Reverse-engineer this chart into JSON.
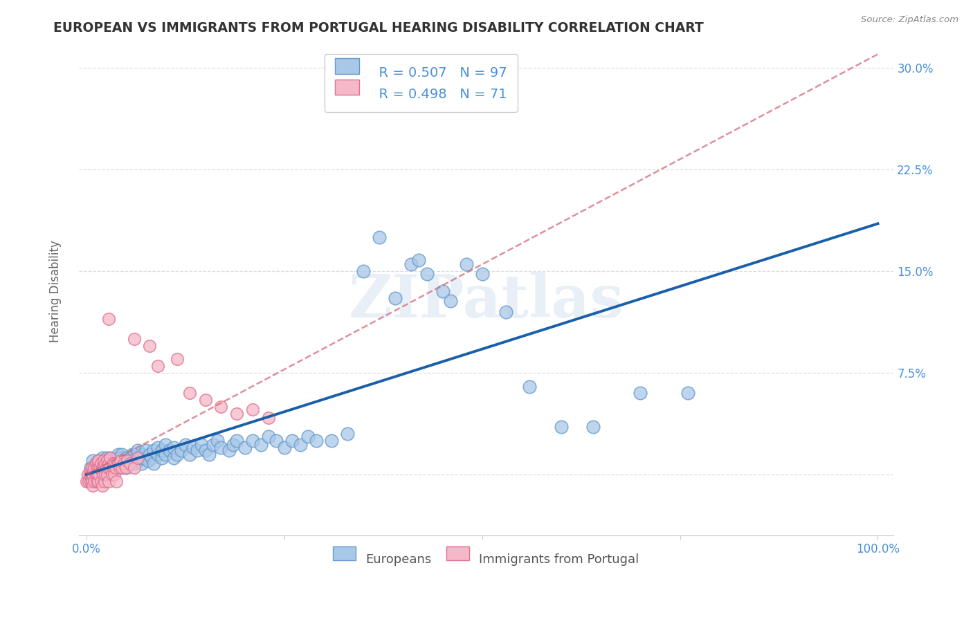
{
  "title": "EUROPEAN VS IMMIGRANTS FROM PORTUGAL HEARING DISABILITY CORRELATION CHART",
  "source": "Source: ZipAtlas.com",
  "ylabel": "Hearing Disability",
  "xlim": [
    -0.01,
    1.02
  ],
  "ylim": [
    -0.045,
    0.315
  ],
  "watermark": "ZIPatlas",
  "legend_r1": "R = 0.507",
  "legend_n1": "N = 97",
  "legend_r2": "R = 0.498",
  "legend_n2": "N = 71",
  "blue_color": "#a8c8e8",
  "blue_edge": "#6699cc",
  "pink_color": "#f5b8c8",
  "pink_edge": "#e07090",
  "trendline_blue": "#1a5faa",
  "trendline_pink": "#d06070",
  "blue_scatter": [
    [
      0.005,
      0.005
    ],
    [
      0.008,
      0.01
    ],
    [
      0.01,
      0.005
    ],
    [
      0.012,
      0.008
    ],
    [
      0.015,
      0.003
    ],
    [
      0.015,
      0.01
    ],
    [
      0.018,
      0.008
    ],
    [
      0.02,
      0.005
    ],
    [
      0.02,
      0.012
    ],
    [
      0.022,
      0.008
    ],
    [
      0.025,
      0.005
    ],
    [
      0.025,
      0.012
    ],
    [
      0.028,
      0.01
    ],
    [
      0.03,
      0.005
    ],
    [
      0.03,
      0.012
    ],
    [
      0.032,
      0.008
    ],
    [
      0.035,
      0.01
    ],
    [
      0.038,
      0.005
    ],
    [
      0.038,
      0.012
    ],
    [
      0.04,
      0.008
    ],
    [
      0.04,
      0.015
    ],
    [
      0.042,
      0.012
    ],
    [
      0.045,
      0.008
    ],
    [
      0.045,
      0.015
    ],
    [
      0.048,
      0.01
    ],
    [
      0.05,
      0.005
    ],
    [
      0.05,
      0.012
    ],
    [
      0.052,
      0.008
    ],
    [
      0.055,
      0.012
    ],
    [
      0.058,
      0.015
    ],
    [
      0.06,
      0.008
    ],
    [
      0.06,
      0.015
    ],
    [
      0.062,
      0.012
    ],
    [
      0.065,
      0.01
    ],
    [
      0.065,
      0.018
    ],
    [
      0.068,
      0.012
    ],
    [
      0.07,
      0.008
    ],
    [
      0.07,
      0.015
    ],
    [
      0.072,
      0.012
    ],
    [
      0.075,
      0.018
    ],
    [
      0.078,
      0.01
    ],
    [
      0.08,
      0.015
    ],
    [
      0.082,
      0.012
    ],
    [
      0.085,
      0.008
    ],
    [
      0.085,
      0.018
    ],
    [
      0.09,
      0.015
    ],
    [
      0.09,
      0.02
    ],
    [
      0.095,
      0.012
    ],
    [
      0.095,
      0.018
    ],
    [
      0.1,
      0.015
    ],
    [
      0.1,
      0.022
    ],
    [
      0.105,
      0.018
    ],
    [
      0.11,
      0.012
    ],
    [
      0.11,
      0.02
    ],
    [
      0.115,
      0.015
    ],
    [
      0.12,
      0.018
    ],
    [
      0.125,
      0.022
    ],
    [
      0.13,
      0.015
    ],
    [
      0.135,
      0.02
    ],
    [
      0.14,
      0.018
    ],
    [
      0.145,
      0.022
    ],
    [
      0.15,
      0.018
    ],
    [
      0.155,
      0.015
    ],
    [
      0.16,
      0.022
    ],
    [
      0.165,
      0.025
    ],
    [
      0.17,
      0.02
    ],
    [
      0.18,
      0.018
    ],
    [
      0.185,
      0.022
    ],
    [
      0.19,
      0.025
    ],
    [
      0.2,
      0.02
    ],
    [
      0.21,
      0.025
    ],
    [
      0.22,
      0.022
    ],
    [
      0.23,
      0.028
    ],
    [
      0.24,
      0.025
    ],
    [
      0.25,
      0.02
    ],
    [
      0.26,
      0.025
    ],
    [
      0.27,
      0.022
    ],
    [
      0.28,
      0.028
    ],
    [
      0.29,
      0.025
    ],
    [
      0.31,
      0.025
    ],
    [
      0.33,
      0.03
    ],
    [
      0.35,
      0.15
    ],
    [
      0.37,
      0.175
    ],
    [
      0.39,
      0.13
    ],
    [
      0.41,
      0.155
    ],
    [
      0.42,
      0.158
    ],
    [
      0.43,
      0.148
    ],
    [
      0.45,
      0.135
    ],
    [
      0.46,
      0.128
    ],
    [
      0.48,
      0.155
    ],
    [
      0.5,
      0.148
    ],
    [
      0.53,
      0.12
    ],
    [
      0.56,
      0.065
    ],
    [
      0.6,
      0.035
    ],
    [
      0.64,
      0.035
    ],
    [
      0.7,
      0.06
    ],
    [
      0.76,
      0.06
    ]
  ],
  "pink_scatter": [
    [
      0.0,
      -0.005
    ],
    [
      0.002,
      0.0
    ],
    [
      0.003,
      -0.005
    ],
    [
      0.004,
      0.0
    ],
    [
      0.005,
      -0.005
    ],
    [
      0.005,
      0.003
    ],
    [
      0.006,
      0.0
    ],
    [
      0.007,
      -0.005
    ],
    [
      0.007,
      0.005
    ],
    [
      0.008,
      0.0
    ],
    [
      0.008,
      -0.008
    ],
    [
      0.009,
      0.003
    ],
    [
      0.01,
      -0.005
    ],
    [
      0.01,
      0.005
    ],
    [
      0.012,
      0.0
    ],
    [
      0.012,
      0.008
    ],
    [
      0.013,
      -0.005
    ],
    [
      0.013,
      0.005
    ],
    [
      0.014,
      0.0
    ],
    [
      0.015,
      -0.005
    ],
    [
      0.015,
      0.005
    ],
    [
      0.015,
      0.01
    ],
    [
      0.016,
      0.0
    ],
    [
      0.017,
      0.005
    ],
    [
      0.018,
      -0.005
    ],
    [
      0.018,
      0.008
    ],
    [
      0.019,
      0.003
    ],
    [
      0.02,
      -0.008
    ],
    [
      0.02,
      0.005
    ],
    [
      0.021,
      0.0
    ],
    [
      0.022,
      0.005
    ],
    [
      0.022,
      0.01
    ],
    [
      0.023,
      -0.005
    ],
    [
      0.024,
      0.0
    ],
    [
      0.024,
      0.008
    ],
    [
      0.025,
      0.005
    ],
    [
      0.026,
      0.0
    ],
    [
      0.026,
      0.01
    ],
    [
      0.027,
      0.005
    ],
    [
      0.028,
      -0.005
    ],
    [
      0.028,
      0.008
    ],
    [
      0.03,
      0.005
    ],
    [
      0.03,
      0.012
    ],
    [
      0.032,
      0.0
    ],
    [
      0.033,
      0.008
    ],
    [
      0.034,
      0.005
    ],
    [
      0.035,
      0.0
    ],
    [
      0.036,
      0.008
    ],
    [
      0.037,
      0.005
    ],
    [
      0.038,
      -0.005
    ],
    [
      0.04,
      0.008
    ],
    [
      0.042,
      0.005
    ],
    [
      0.043,
      0.01
    ],
    [
      0.045,
      0.005
    ],
    [
      0.047,
      0.008
    ],
    [
      0.05,
      0.005
    ],
    [
      0.052,
      0.01
    ],
    [
      0.055,
      0.008
    ],
    [
      0.06,
      0.005
    ],
    [
      0.065,
      0.012
    ],
    [
      0.028,
      0.115
    ],
    [
      0.06,
      0.1
    ],
    [
      0.08,
      0.095
    ],
    [
      0.09,
      0.08
    ],
    [
      0.115,
      0.085
    ],
    [
      0.13,
      0.06
    ],
    [
      0.15,
      0.055
    ],
    [
      0.17,
      0.05
    ],
    [
      0.19,
      0.045
    ],
    [
      0.21,
      0.048
    ],
    [
      0.23,
      0.042
    ]
  ],
  "blue_trend_x": [
    0.0,
    1.0
  ],
  "blue_trend_y": [
    0.0,
    0.185
  ],
  "pink_trend_x": [
    0.0,
    1.0
  ],
  "pink_trend_y": [
    0.0,
    0.31
  ],
  "background_color": "#ffffff",
  "grid_color": "#dddddd",
  "grid_style": "--",
  "title_color": "#333333",
  "axis_label_color": "#666666",
  "tick_color_right": "#4a90d9",
  "tick_color_bottom": "#4a90d9"
}
